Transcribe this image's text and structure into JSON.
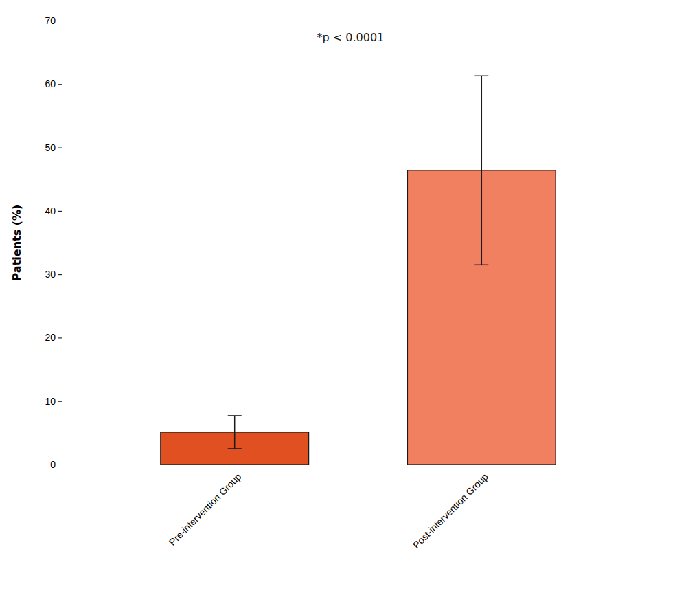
{
  "chart_data": {
    "type": "bar",
    "categories": [
      "Pre-intervention Group",
      "Post-intervention Group"
    ],
    "values": [
      5.1,
      46.4
    ],
    "errors": [
      2.6,
      14.9
    ],
    "colors": [
      "#e05020",
      "#f08060"
    ],
    "ylabel": "Patients (%)",
    "ylim": [
      0,
      70
    ],
    "yticks": [
      0,
      10,
      20,
      30,
      40,
      50,
      60,
      70
    ],
    "annotations": [
      "*p < 0.0001"
    ],
    "grid": false
  }
}
